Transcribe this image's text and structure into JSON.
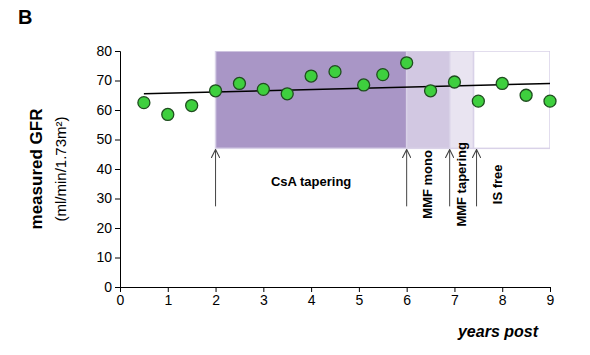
{
  "chart_data": {
    "type": "scatter",
    "panel_label": "B",
    "y_label": "measured GFR",
    "y_label_units": "(ml/min/1.73m²)",
    "x_label": "years post",
    "x": [
      0.5,
      1,
      1.5,
      2,
      2.5,
      3,
      3.5,
      4,
      4.5,
      5.1,
      5.5,
      6,
      6.5,
      7,
      7.5,
      8,
      8.5,
      9
    ],
    "values": [
      62.5,
      58.5,
      61.5,
      66.5,
      69,
      67,
      65.5,
      71.5,
      73,
      68.5,
      72,
      76,
      66.5,
      69.5,
      63,
      69,
      65,
      63
    ],
    "color": "#3ecf3e",
    "marker": "circle",
    "xlim": [
      0,
      9
    ],
    "xticks": [
      0,
      1,
      2,
      3,
      4,
      5,
      6,
      7,
      8,
      9
    ],
    "ylim": [
      0,
      80
    ],
    "yticks": [
      0,
      10,
      20,
      30,
      40,
      50,
      60,
      70,
      80
    ],
    "trend": {
      "x": [
        0.5,
        9
      ],
      "values": [
        65.5,
        69
      ],
      "color": "#000000"
    },
    "periods": [
      {
        "label": "CsA tapering",
        "start": 2,
        "end": 6,
        "y_range": [
          47,
          80
        ],
        "color": "#a996c6"
      },
      {
        "label": "MMF mono",
        "start": 6,
        "end": 6.9,
        "y_range": [
          47,
          80
        ],
        "color": "#d2c8e2"
      },
      {
        "label": "MMF tapering",
        "start": 6.9,
        "end": 7.4,
        "y_range": [
          47,
          80
        ],
        "color": "#e9e4f1"
      },
      {
        "label": "IS free",
        "start": 7.4,
        "end": 9,
        "y_range": [
          47,
          80
        ],
        "color": "#ffffff"
      }
    ]
  }
}
